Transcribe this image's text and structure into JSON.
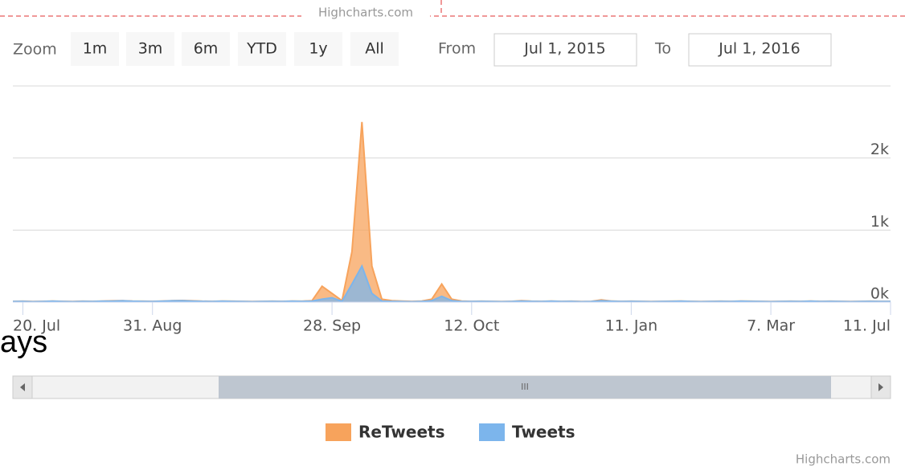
{
  "chart_data": {
    "type": "area",
    "categories": [
      null,
      "20. Jul",
      null,
      null,
      null,
      null,
      null,
      null,
      null,
      null,
      null,
      null,
      null,
      null,
      "31. Aug",
      null,
      null,
      null,
      null,
      null,
      null,
      null,
      null,
      null,
      null,
      null,
      null,
      null,
      null,
      null,
      null,
      null,
      "28. Sep",
      null,
      null,
      null,
      null,
      null,
      null,
      null,
      null,
      null,
      null,
      null,
      null,
      null,
      "12. Oct",
      null,
      null,
      null,
      null,
      null,
      null,
      null,
      null,
      null,
      null,
      null,
      null,
      null,
      null,
      null,
      "11. Jan",
      null,
      null,
      null,
      null,
      null,
      null,
      null,
      null,
      null,
      null,
      null,
      null,
      null,
      "7. Mar",
      null,
      null,
      null,
      null,
      null,
      null,
      null,
      null,
      null,
      null,
      null,
      "11. Jul"
    ],
    "series": [
      {
        "name": "ReTweets",
        "color": "#f7a35c",
        "values": [
          10,
          12,
          8,
          10,
          15,
          10,
          8,
          12,
          10,
          14,
          18,
          20,
          15,
          12,
          10,
          15,
          20,
          22,
          18,
          12,
          10,
          15,
          12,
          10,
          8,
          10,
          12,
          10,
          15,
          12,
          20,
          220,
          120,
          20,
          700,
          2500,
          500,
          40,
          20,
          15,
          10,
          15,
          40,
          250,
          40,
          15,
          10,
          12,
          10,
          8,
          10,
          20,
          12,
          10,
          15,
          10,
          12,
          8,
          10,
          30,
          15,
          10,
          12,
          10,
          8,
          10,
          12,
          15,
          10,
          8,
          10,
          12,
          10,
          15,
          12,
          10,
          8,
          10,
          12,
          10,
          15,
          10,
          12,
          10,
          8,
          10,
          12,
          10,
          10
        ]
      },
      {
        "name": "Tweets",
        "color": "#7cb5ec",
        "values": [
          8,
          10,
          6,
          8,
          12,
          8,
          6,
          10,
          8,
          12,
          15,
          18,
          12,
          10,
          8,
          12,
          18,
          20,
          15,
          10,
          8,
          12,
          10,
          8,
          6,
          8,
          10,
          8,
          12,
          10,
          15,
          40,
          60,
          10,
          250,
          500,
          120,
          15,
          10,
          8,
          6,
          10,
          20,
          80,
          20,
          8,
          8,
          10,
          8,
          6,
          8,
          15,
          10,
          8,
          12,
          8,
          10,
          6,
          8,
          20,
          12,
          8,
          10,
          8,
          6,
          8,
          10,
          12,
          8,
          6,
          8,
          10,
          8,
          12,
          10,
          8,
          6,
          8,
          10,
          8,
          12,
          8,
          10,
          8,
          6,
          8,
          10,
          8,
          8
        ]
      }
    ],
    "ylim": [
      0,
      3000
    ],
    "yticks": [
      {
        "value": 0,
        "label": "0k"
      },
      {
        "value": 1000,
        "label": "1k"
      },
      {
        "value": 2000,
        "label": "2k"
      }
    ],
    "grid": true,
    "legend": "bottom",
    "ui": {
      "top_credit": "Highcharts.com",
      "zoom_label": "Zoom",
      "buttons": [
        "1m",
        "3m",
        "6m",
        "YTD",
        "1y",
        "All"
      ],
      "from_label": "From",
      "from_value": "Jul 1, 2015",
      "to_label": "To",
      "to_value": "Jul 1, 2016",
      "fragment": "ays",
      "credits": "Highcharts.com"
    }
  }
}
